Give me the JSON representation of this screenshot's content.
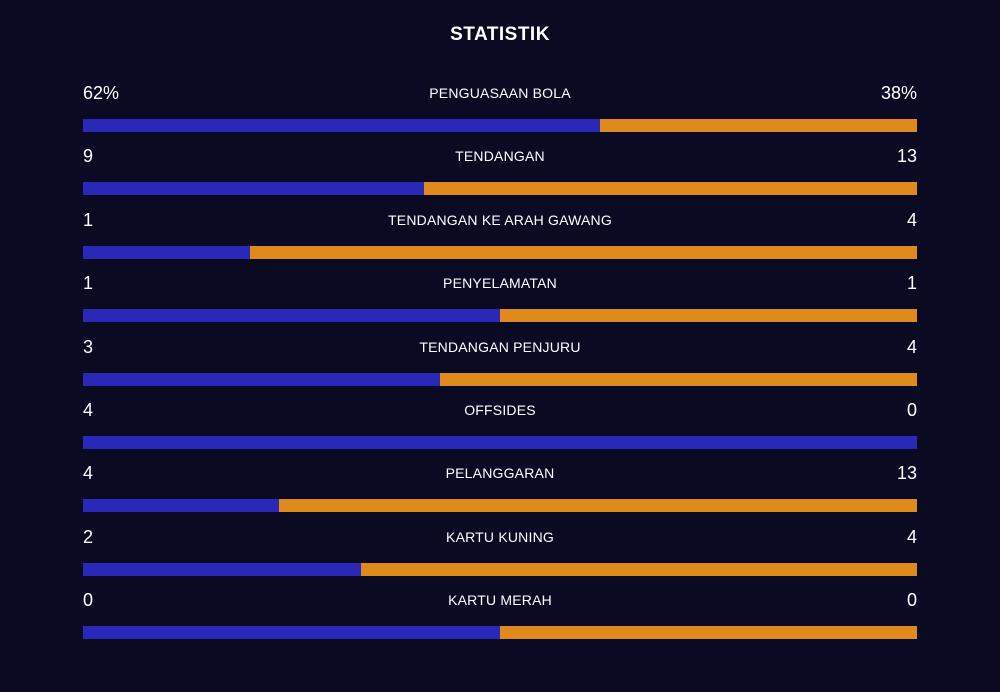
{
  "title": "STATISTIK",
  "colors": {
    "background": "#0a0a23",
    "home": "#2a28b8",
    "away": "#e08a1e",
    "text": "#ffffff"
  },
  "stats": [
    {
      "label": "PENGUASAAN BOLA",
      "home": "62%",
      "away": "38%",
      "home_value": 62,
      "away_value": 38
    },
    {
      "label": "TENDANGAN",
      "home": "9",
      "away": "13",
      "home_value": 9,
      "away_value": 13
    },
    {
      "label": "TENDANGAN KE ARAH GAWANG",
      "home": "1",
      "away": "4",
      "home_value": 1,
      "away_value": 4
    },
    {
      "label": "PENYELAMATAN",
      "home": "1",
      "away": "1",
      "home_value": 1,
      "away_value": 1
    },
    {
      "label": "TENDANGAN PENJURU",
      "home": "3",
      "away": "4",
      "home_value": 3,
      "away_value": 4
    },
    {
      "label": "OFFSIDES",
      "home": "4",
      "away": "0",
      "home_value": 4,
      "away_value": 0
    },
    {
      "label": "PELANGGARAN",
      "home": "4",
      "away": "13",
      "home_value": 4,
      "away_value": 13
    },
    {
      "label": "KARTU KUNING",
      "home": "2",
      "away": "4",
      "home_value": 2,
      "away_value": 4
    },
    {
      "label": "KARTU MERAH",
      "home": "0",
      "away": "0",
      "home_value": 0,
      "away_value": 0
    }
  ]
}
